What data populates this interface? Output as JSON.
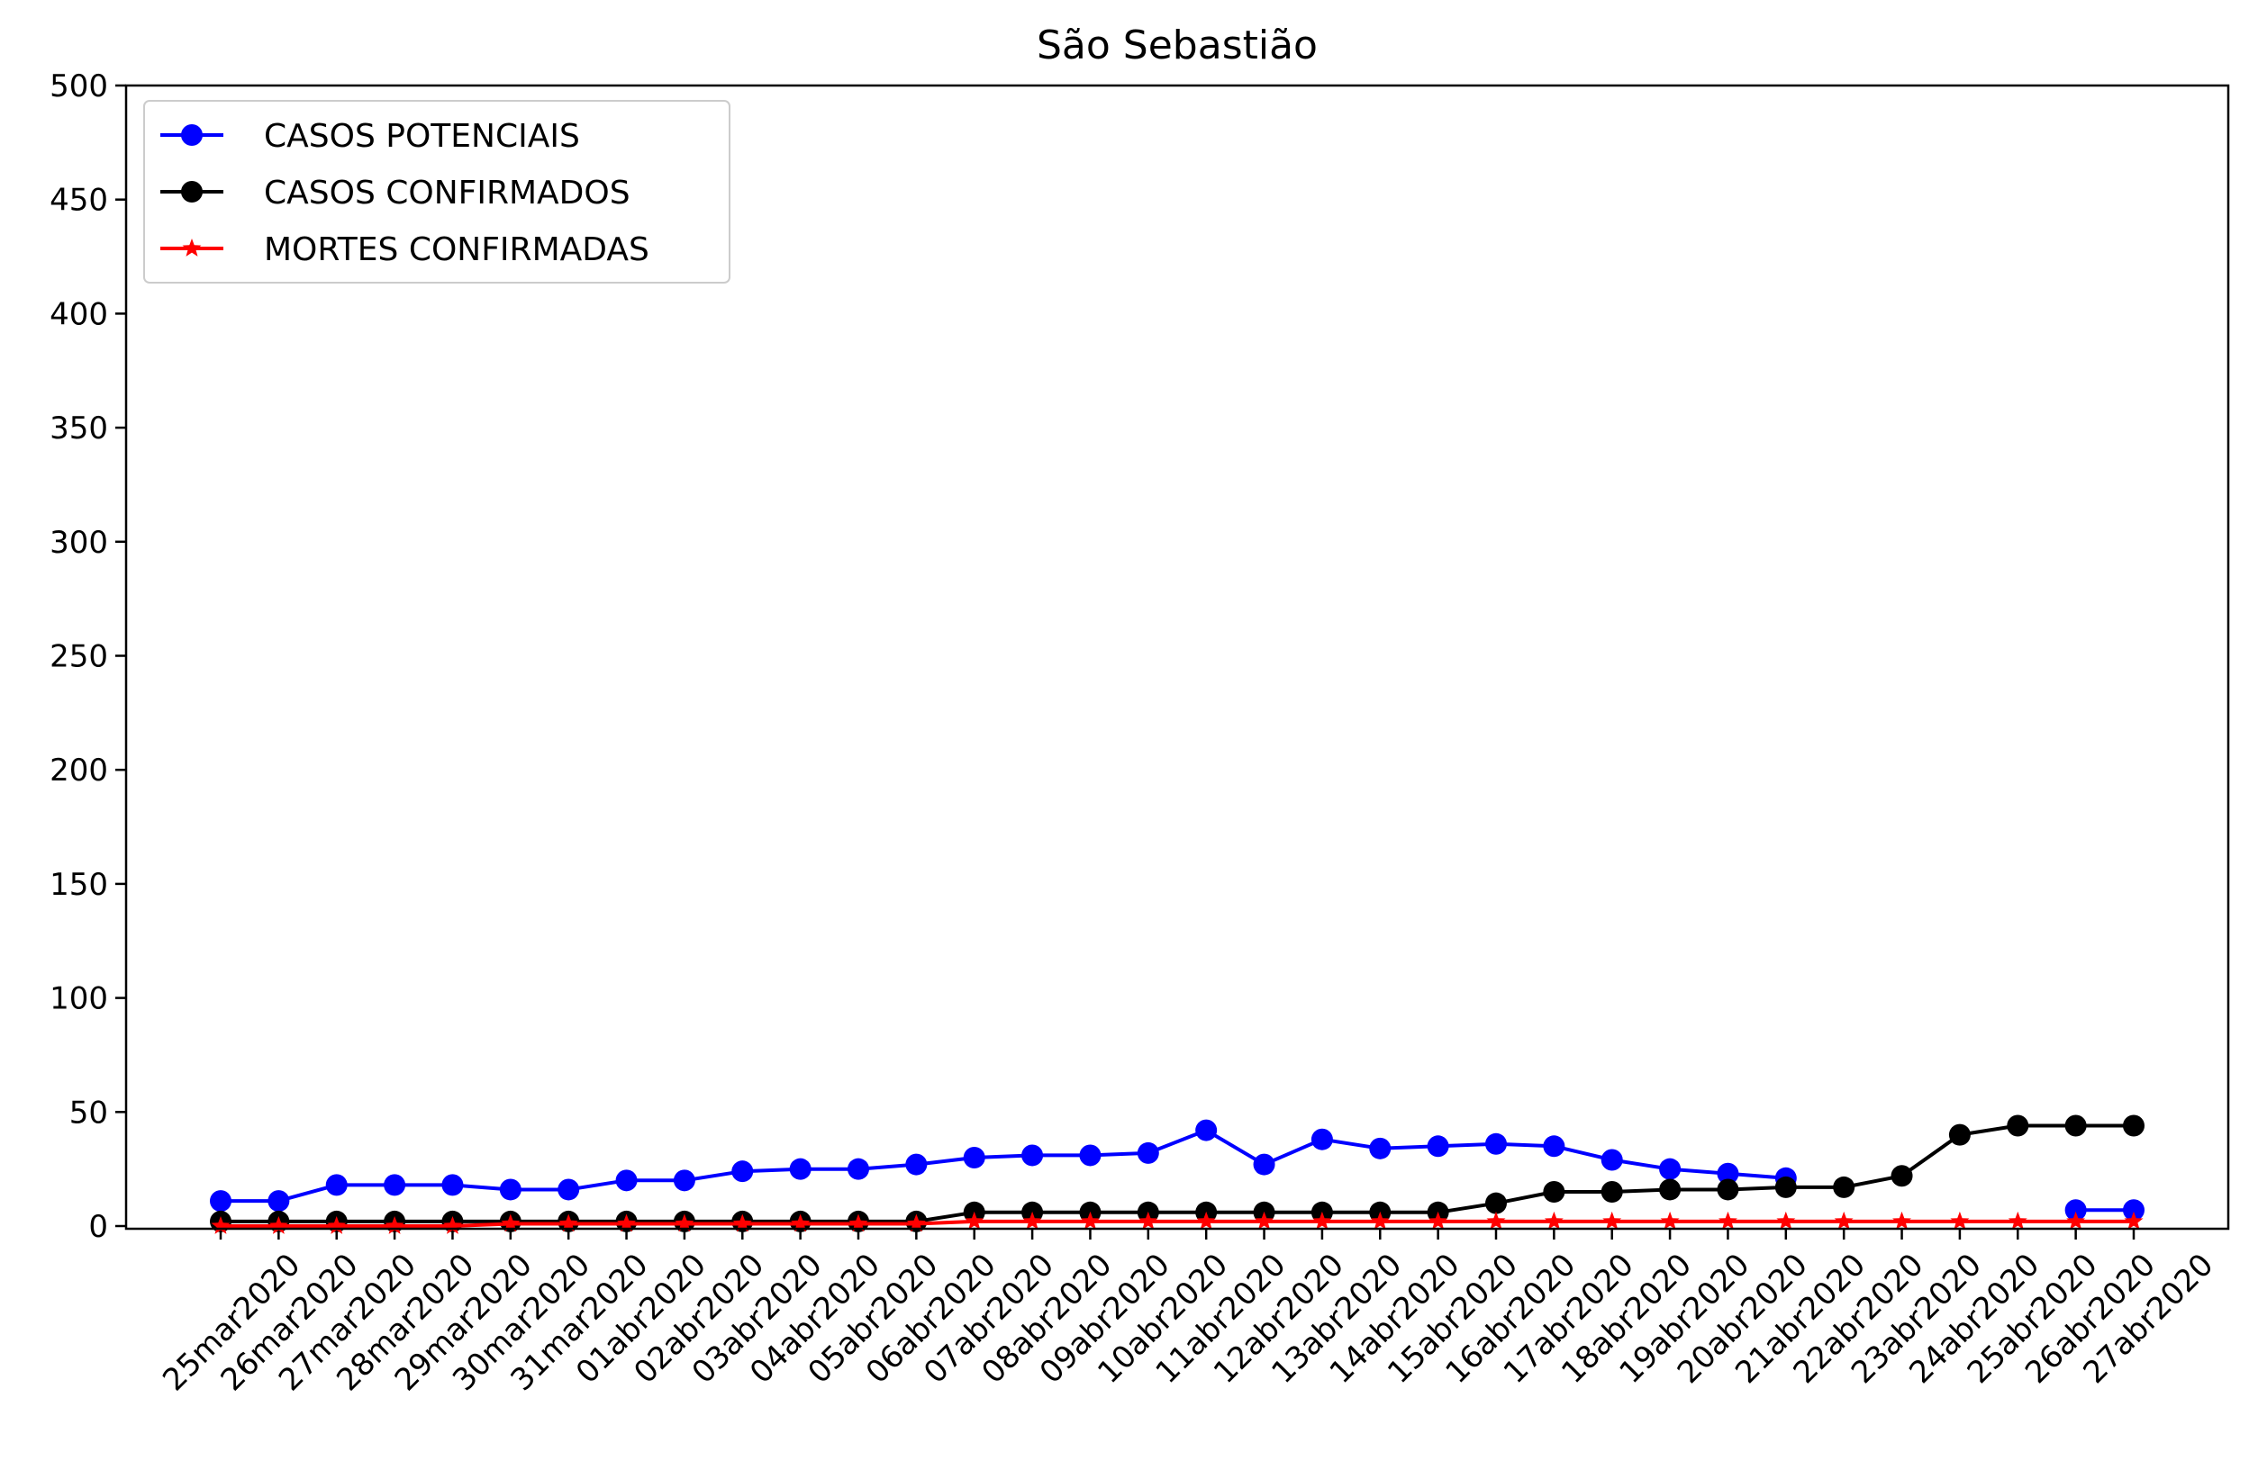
{
  "chart_data": {
    "type": "line",
    "title": "São Sebastião",
    "xlabel": "",
    "ylabel": "",
    "ylim": [
      0,
      500
    ],
    "yticks": [
      0,
      50,
      100,
      150,
      200,
      250,
      300,
      350,
      400,
      450,
      500
    ],
    "grid": false,
    "legend_position": "top-left",
    "categories": [
      "25mar2020",
      "26mar2020",
      "27mar2020",
      "28mar2020",
      "29mar2020",
      "30mar2020",
      "31mar2020",
      "01abr2020",
      "02abr2020",
      "03abr2020",
      "04abr2020",
      "05abr2020",
      "06abr2020",
      "07abr2020",
      "08abr2020",
      "09abr2020",
      "10abr2020",
      "11abr2020",
      "12abr2020",
      "13abr2020",
      "14abr2020",
      "15abr2020",
      "16abr2020",
      "17abr2020",
      "18abr2020",
      "19abr2020",
      "20abr2020",
      "21abr2020",
      "22abr2020",
      "23abr2020",
      "24abr2020",
      "25abr2020",
      "26abr2020",
      "27abr2020"
    ],
    "series": [
      {
        "name": "CASOS POTENCIAIS",
        "color": "#0000ff",
        "marker": "circle",
        "values": [
          11,
          11,
          18,
          18,
          18,
          16,
          16,
          20,
          20,
          24,
          25,
          25,
          27,
          30,
          31,
          31,
          32,
          42,
          27,
          38,
          34,
          35,
          36,
          35,
          29,
          25,
          23,
          21,
          null,
          null,
          null,
          null,
          7,
          7
        ]
      },
      {
        "name": "CASOS CONFIRMADOS",
        "color": "#000000",
        "marker": "circle",
        "values": [
          2,
          2,
          2,
          2,
          2,
          2,
          2,
          2,
          2,
          2,
          2,
          2,
          2,
          6,
          6,
          6,
          6,
          6,
          6,
          6,
          6,
          6,
          10,
          15,
          15,
          16,
          16,
          17,
          17,
          22,
          40,
          44,
          44,
          44
        ]
      },
      {
        "name": "MORTES CONFIRMADAS",
        "color": "#ff0000",
        "marker": "star",
        "values": [
          0,
          0,
          0,
          0,
          0,
          1,
          1,
          1,
          1,
          1,
          1,
          1,
          1,
          2,
          2,
          2,
          2,
          2,
          2,
          2,
          2,
          2,
          2,
          2,
          2,
          2,
          2,
          2,
          2,
          2,
          2,
          2,
          2,
          2
        ]
      }
    ]
  }
}
